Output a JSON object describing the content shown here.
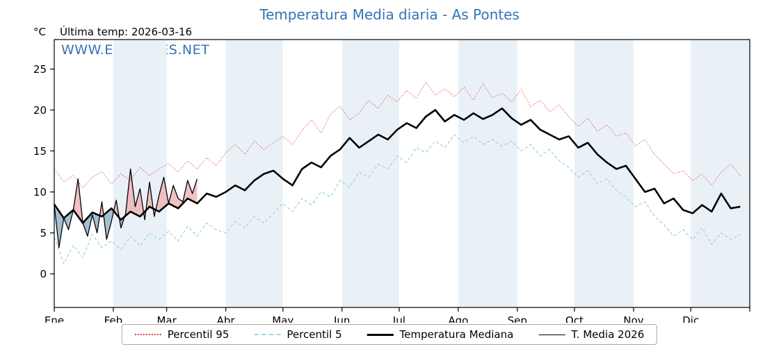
{
  "title": "Temperatura Media diaria - As Pontes",
  "header": {
    "units": "°C",
    "last_temp": "Última temp: 2026-03-16"
  },
  "watermark": "WWW.EMBALSES.NET",
  "colors": {
    "title_blue": "#3673b5",
    "p95": "#d83838",
    "p5": "#a0d5e6",
    "median": "#000000",
    "t2026": "#000000",
    "band": "#e9f1f7",
    "fill_above": "#efb3b3",
    "fill_below": "#8fb0ca",
    "frame": "#000000"
  },
  "chart_data": {
    "type": "line",
    "title": "Temperatura Media diaria - As Pontes",
    "ylabel": "°C",
    "ylim": [
      -4.1,
      28.6
    ],
    "yticks": [
      0,
      5,
      10,
      15,
      20,
      25
    ],
    "xlim_days": [
      0,
      365
    ],
    "month_labels": [
      "Ene",
      "Feb",
      "Mar",
      "Abr",
      "May",
      "Jun",
      "Jul",
      "Ago",
      "Sep",
      "Oct",
      "Nov",
      "Dic"
    ],
    "month_boundaries": [
      0,
      31,
      59,
      90,
      120,
      151,
      181,
      212,
      243,
      273,
      304,
      334,
      365
    ],
    "grid": false,
    "legend_position": "bottom",
    "x_step_days": 5,
    "series": [
      {
        "name": "Percentil 95",
        "style": "dotted",
        "color": "#d83838",
        "width": 1,
        "values": [
          12.8,
          11.2,
          12.0,
          10.5,
          11.8,
          12.5,
          11.0,
          12.2,
          11.4,
          13.0,
          12.0,
          12.8,
          13.5,
          12.4,
          13.8,
          12.8,
          14.2,
          13.2,
          14.8,
          15.8,
          14.6,
          16.2,
          15.2,
          16.0,
          16.8,
          15.8,
          17.5,
          18.8,
          17.2,
          19.5,
          20.5,
          18.8,
          19.6,
          21.2,
          20.2,
          21.8,
          21.0,
          22.4,
          21.4,
          23.4,
          21.8,
          22.6,
          21.6,
          22.8,
          21.2,
          23.2,
          21.5,
          22.0,
          21.0,
          22.5,
          20.4,
          21.2,
          19.8,
          20.6,
          19.2,
          18.0,
          19.0,
          17.4,
          18.2,
          16.8,
          17.2,
          15.6,
          16.4,
          14.6,
          13.4,
          12.2,
          12.6,
          11.4,
          12.2,
          10.8,
          12.4,
          13.4,
          12.0
        ]
      },
      {
        "name": "Percentil 5",
        "style": "dashed",
        "color": "#a0d5e6",
        "width": 1.2,
        "values": [
          4.5,
          1.2,
          3.5,
          2.0,
          4.8,
          3.2,
          4.0,
          3.0,
          4.6,
          3.4,
          5.0,
          4.2,
          5.2,
          4.0,
          5.8,
          4.6,
          6.2,
          5.4,
          5.0,
          6.4,
          5.6,
          7.0,
          6.2,
          7.4,
          8.6,
          7.6,
          9.2,
          8.4,
          10.0,
          9.4,
          11.4,
          10.6,
          12.4,
          11.8,
          13.4,
          12.8,
          14.4,
          13.6,
          15.4,
          14.8,
          16.2,
          15.4,
          17.0,
          16.0,
          16.8,
          15.8,
          16.4,
          15.6,
          16.2,
          15.0,
          15.8,
          14.4,
          15.2,
          13.8,
          13.0,
          11.8,
          12.6,
          11.0,
          11.6,
          10.2,
          9.4,
          8.2,
          8.8,
          7.0,
          6.0,
          4.6,
          5.4,
          4.2,
          5.6,
          3.6,
          5.0,
          4.2,
          4.8
        ]
      },
      {
        "name": "Temperatura Mediana",
        "style": "solid",
        "color": "#000000",
        "width": 2.6,
        "values": [
          8.5,
          6.8,
          7.8,
          6.2,
          7.5,
          7.0,
          8.0,
          6.6,
          7.6,
          7.0,
          8.2,
          7.6,
          8.6,
          8.0,
          9.2,
          8.6,
          9.8,
          9.4,
          10.0,
          10.8,
          10.2,
          11.4,
          12.2,
          12.6,
          11.6,
          10.8,
          12.8,
          13.6,
          13.0,
          14.4,
          15.2,
          16.6,
          15.4,
          16.2,
          17.0,
          16.4,
          17.6,
          18.4,
          17.8,
          19.2,
          20.0,
          18.6,
          19.4,
          18.8,
          19.6,
          18.9,
          19.4,
          20.2,
          19.0,
          18.2,
          18.8,
          17.6,
          17.0,
          16.4,
          16.8,
          15.4,
          16.0,
          14.6,
          13.6,
          12.8,
          13.2,
          11.6,
          10.0,
          10.4,
          8.6,
          9.2,
          7.8,
          7.4,
          8.4,
          7.6,
          9.8,
          8.0,
          8.2
        ]
      },
      {
        "name": "T. Media 2026",
        "style": "solid",
        "color": "#000000",
        "width": 1.3,
        "x_step_days": 2.5,
        "values": [
          8.4,
          3.2,
          6.8,
          5.4,
          7.8,
          11.6,
          6.2,
          4.6,
          7.2,
          5.0,
          8.8,
          4.2,
          6.4,
          9.0,
          5.6,
          7.4,
          12.8,
          8.2,
          10.4,
          6.6,
          11.2,
          7.0,
          9.6,
          11.8,
          8.6,
          10.8,
          9.2,
          8.8,
          11.4,
          9.8,
          11.6
        ]
      }
    ]
  }
}
